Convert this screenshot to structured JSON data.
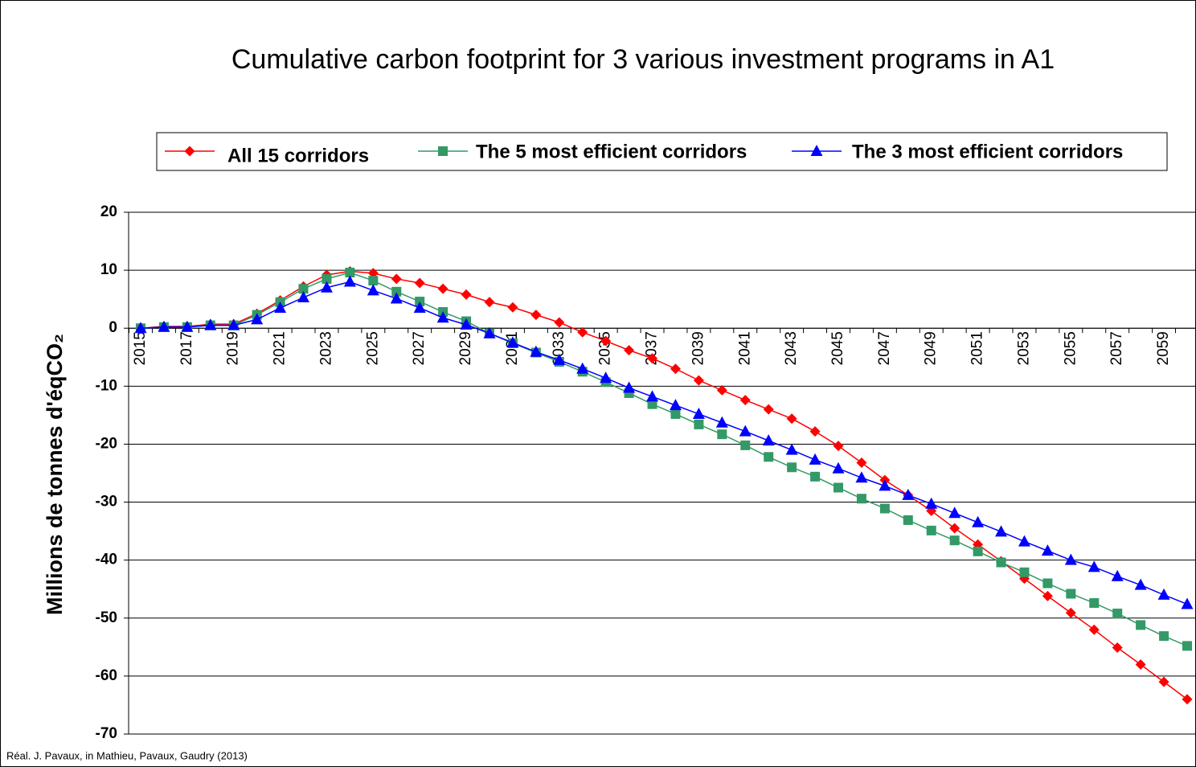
{
  "chart_data": {
    "type": "line",
    "title": "Cumulative carbon footprint for 3 various investment programs in A1",
    "y_label": "Millions de tonnes d'éqCO₂",
    "source": "Réal. J. Pavaux, in Mathieu, Pavaux, Gaudry (2013)",
    "categories": [
      "2015",
      null,
      "2017",
      null,
      "2019",
      null,
      "2021",
      null,
      "2023",
      null,
      "2025",
      null,
      "2027",
      null,
      "2029",
      null,
      "2031",
      null,
      "2033",
      null,
      "2035",
      null,
      "2037",
      null,
      "2039",
      null,
      "2041",
      null,
      "2043",
      null,
      "2045",
      null,
      "2047",
      null,
      "2049",
      null,
      "2051",
      null,
      "2053",
      null,
      "2055",
      null,
      "2057",
      null,
      "2059",
      null
    ],
    "series": [
      {
        "name": "All 15 corridors",
        "color": "#ff0000",
        "marker": "diamond",
        "values": [
          0,
          0.3,
          0.3,
          0.7,
          0.7,
          2.5,
          4.8,
          7.2,
          9.2,
          9.8,
          9.5,
          8.5,
          7.8,
          6.8,
          5.8,
          4.5,
          3.6,
          2.3,
          1.0,
          -0.7,
          -2.2,
          -3.8,
          -5.2,
          -7.0,
          -9.0,
          -10.7,
          -12.4,
          -14.0,
          -15.6,
          -17.8,
          -20.3,
          -23.2,
          -26.2,
          -28.8,
          -31.5,
          -34.5,
          -37.3,
          -40.2,
          -43.2,
          -46.2,
          -49.1,
          -52.0,
          -55.1,
          -58.0,
          -61.0,
          -64.0
        ]
      },
      {
        "name": "The 5 most efficient corridors",
        "color": "#339966",
        "marker": "square",
        "values": [
          0,
          0.2,
          0.2,
          0.5,
          0.5,
          2.3,
          4.5,
          6.8,
          8.5,
          9.6,
          8.2,
          6.3,
          4.6,
          2.8,
          1.2,
          -0.9,
          -2.6,
          -4.2,
          -5.8,
          -7.5,
          -9.3,
          -11.2,
          -13.1,
          -14.8,
          -16.6,
          -18.3,
          -20.2,
          -22.2,
          -24.0,
          -25.6,
          -27.5,
          -29.4,
          -31.1,
          -33.1,
          -34.9,
          -36.6,
          -38.5,
          -40.4,
          -42.1,
          -44.0,
          -45.8,
          -47.4,
          -49.2,
          -51.2,
          -53.1,
          -54.8
        ]
      },
      {
        "name": "The 3 most efficient corridors",
        "color": "#0000ff",
        "marker": "triangle",
        "values": [
          0,
          0.2,
          0.2,
          0.5,
          0.5,
          1.5,
          3.5,
          5.3,
          7.0,
          8.0,
          6.5,
          5.1,
          3.5,
          1.8,
          0.6,
          -0.9,
          -2.5,
          -4.1,
          -5.5,
          -7.0,
          -8.6,
          -10.3,
          -11.8,
          -13.3,
          -14.8,
          -16.3,
          -17.8,
          -19.4,
          -21.0,
          -22.7,
          -24.2,
          -25.8,
          -27.2,
          -28.8,
          -30.3,
          -31.9,
          -33.5,
          -35.1,
          -36.8,
          -38.4,
          -40.0,
          -41.2,
          -42.8,
          -44.3,
          -46.0,
          -47.6
        ]
      }
    ],
    "ylim": [
      -70,
      20
    ],
    "yticks": [
      20,
      10,
      0,
      -10,
      -20,
      -30,
      -40,
      -50,
      -60,
      -70
    ],
    "grid": true,
    "legend": "top"
  }
}
